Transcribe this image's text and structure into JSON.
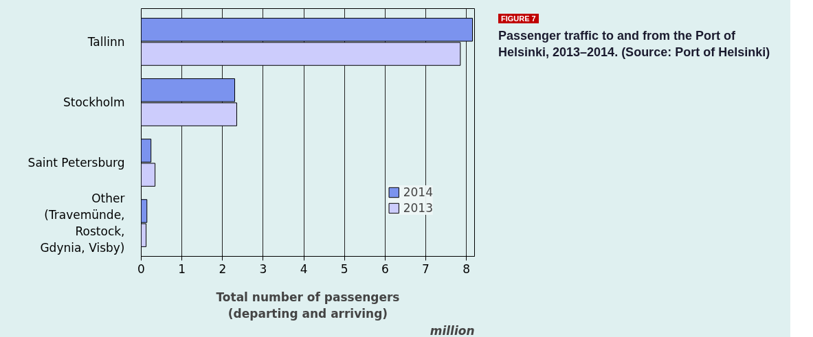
{
  "chart_data": {
    "type": "bar",
    "orientation": "horizontal",
    "title": "Passenger traffic to and from the Port of Helsinki, 2013–2014. (Source: Port of Helsinki)",
    "subtitle": "FIGURE 7",
    "xlabel": "Total number of passengers\n(departing and arriving)",
    "annotations": [
      "million"
    ],
    "categories": [
      "Tallinn",
      "Stockholm",
      "Saint Petersburg",
      "Other\n(Travemünde,\nRostock,\nGdynia, Visby)"
    ],
    "series": [
      {
        "name": "2014",
        "color": "#7b93ee",
        "values": [
          8.15,
          2.3,
          0.24,
          0.14
        ]
      },
      {
        "name": "2013",
        "color": "#ccccfc",
        "values": [
          7.85,
          2.35,
          0.34,
          0.12
        ]
      }
    ],
    "xlim": [
      0,
      8.2
    ],
    "xticks": [
      0,
      1,
      2,
      3,
      4,
      5,
      6,
      7,
      8
    ],
    "grid": "x",
    "legend": "bottom right"
  }
}
